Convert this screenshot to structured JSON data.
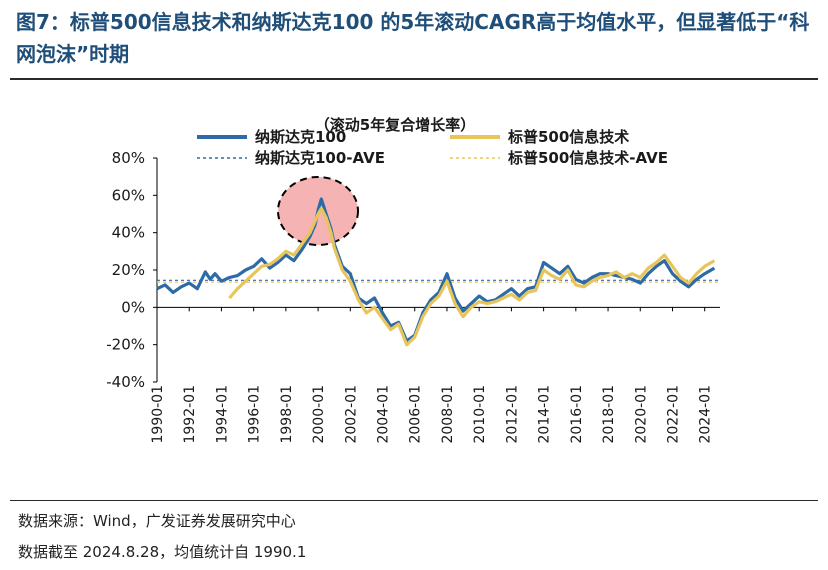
{
  "figure": {
    "title": "图7：标普500信息技术和纳斯达克100 的5年滚动CAGR高于均值水平，但显著低于“科网泡沫”时期",
    "source": "数据来源：Wind，广发证券发展研究中心",
    "note": "数据截至 2024.8.28，均值统计自 1990.1"
  },
  "colors": {
    "nasdaq": "#2e6ba6",
    "sp500it": "#e8c55a",
    "nasdaq_ave": "#2e6ba6",
    "sp500it_ave": "#e8c55a",
    "bubble_fill": "#f6b3b3",
    "axis": "#000000"
  },
  "chart_data": {
    "type": "line",
    "title": "（滚动5年复合增长率）",
    "xlabel": "",
    "ylabel": "",
    "xlim": [
      1990.0,
      2024.95
    ],
    "ylim": [
      -40,
      80
    ],
    "yticks": [
      -40,
      -20,
      0,
      20,
      40,
      60,
      80
    ],
    "ytick_labels": [
      "-40%",
      "-20%",
      "0%",
      "20%",
      "40%",
      "60%",
      "80%"
    ],
    "xtick_labels": [
      "1990-01",
      "1992-01",
      "1994-01",
      "1996-01",
      "1998-01",
      "2000-01",
      "2002-01",
      "2004-01",
      "2006-01",
      "2008-01",
      "2010-01",
      "2012-01",
      "2014-01",
      "2016-01",
      "2018-01",
      "2020-01",
      "2022-01",
      "2024-01"
    ],
    "legend": [
      "纳斯达克100",
      "标普500信息技术",
      "纳斯达克100-AVE",
      "标普500信息技术-AVE"
    ],
    "legend_position": "top",
    "annotation": "科网泡沫",
    "series": [
      {
        "name": "纳斯达克100",
        "x": [
          1990.0,
          1990.5,
          1991.0,
          1991.5,
          1992.0,
          1992.5,
          1993.0,
          1993.3,
          1993.6,
          1994.0,
          1994.5,
          1995.0,
          1995.5,
          1996.0,
          1996.5,
          1997.0,
          1997.5,
          1998.0,
          1998.5,
          1999.0,
          1999.5,
          1999.8,
          2000.0,
          2000.2,
          2000.5,
          2000.8,
          2001.0,
          2001.5,
          2002.0,
          2002.5,
          2003.0,
          2003.5,
          2004.0,
          2004.5,
          2005.0,
          2005.5,
          2006.0,
          2006.5,
          2007.0,
          2007.5,
          2008.0,
          2008.5,
          2009.0,
          2009.5,
          2010.0,
          2010.5,
          2011.0,
          2011.5,
          2012.0,
          2012.5,
          2013.0,
          2013.5,
          2014.0,
          2014.5,
          2015.0,
          2015.5,
          2016.0,
          2016.5,
          2017.0,
          2017.5,
          2018.0,
          2018.5,
          2019.0,
          2019.5,
          2020.0,
          2020.5,
          2021.0,
          2021.5,
          2022.0,
          2022.5,
          2023.0,
          2023.5,
          2024.0,
          2024.6
        ],
        "values": [
          10,
          12,
          8,
          11,
          13,
          10,
          19,
          15,
          18,
          14,
          16,
          17,
          20,
          22,
          26,
          21,
          24,
          28,
          25,
          31,
          38,
          44,
          52,
          58,
          50,
          42,
          34,
          22,
          18,
          5,
          2,
          5,
          -3,
          -10,
          -8,
          -18,
          -15,
          -3,
          4,
          8,
          18,
          5,
          -2,
          2,
          6,
          3,
          4,
          7,
          10,
          6,
          10,
          11,
          24,
          21,
          18,
          22,
          15,
          13,
          16,
          18,
          18,
          17,
          16,
          15,
          13,
          18,
          22,
          25,
          18,
          14,
          11,
          15,
          18,
          21
        ]
      },
      {
        "name": "标普500信息技术",
        "x": [
          1994.5,
          1995.0,
          1995.5,
          1996.0,
          1996.5,
          1997.0,
          1997.5,
          1998.0,
          1998.5,
          1999.0,
          1999.5,
          1999.8,
          2000.0,
          2000.2,
          2000.5,
          2000.8,
          2001.0,
          2001.5,
          2002.0,
          2002.5,
          2003.0,
          2003.5,
          2004.0,
          2004.5,
          2005.0,
          2005.5,
          2006.0,
          2006.5,
          2007.0,
          2007.5,
          2008.0,
          2008.5,
          2009.0,
          2009.5,
          2010.0,
          2010.5,
          2011.0,
          2011.5,
          2012.0,
          2012.5,
          2013.0,
          2013.5,
          2014.0,
          2014.5,
          2015.0,
          2015.5,
          2016.0,
          2016.5,
          2017.0,
          2017.5,
          2018.0,
          2018.5,
          2019.0,
          2019.5,
          2020.0,
          2020.5,
          2021.0,
          2021.5,
          2022.0,
          2022.5,
          2023.0,
          2023.5,
          2024.0,
          2024.6
        ],
        "values": [
          5,
          10,
          14,
          18,
          22,
          23,
          26,
          30,
          28,
          34,
          40,
          46,
          50,
          53,
          48,
          40,
          32,
          20,
          14,
          4,
          -3,
          0,
          -6,
          -12,
          -9,
          -20,
          -16,
          -5,
          2,
          6,
          14,
          2,
          -5,
          0,
          3,
          2,
          3,
          5,
          7,
          4,
          8,
          9,
          20,
          17,
          15,
          20,
          12,
          11,
          14,
          16,
          17,
          19,
          16,
          18,
          16,
          21,
          24,
          28,
          22,
          16,
          13,
          18,
          22,
          25
        ]
      },
      {
        "name": "纳斯达克100-AVE",
        "x": [
          1990.0,
          2024.95
        ],
        "values": [
          14.5,
          14.5
        ]
      },
      {
        "name": "标普500信息技术-AVE",
        "x": [
          1990.0,
          2024.95
        ],
        "values": [
          13.5,
          13.5
        ]
      }
    ]
  }
}
